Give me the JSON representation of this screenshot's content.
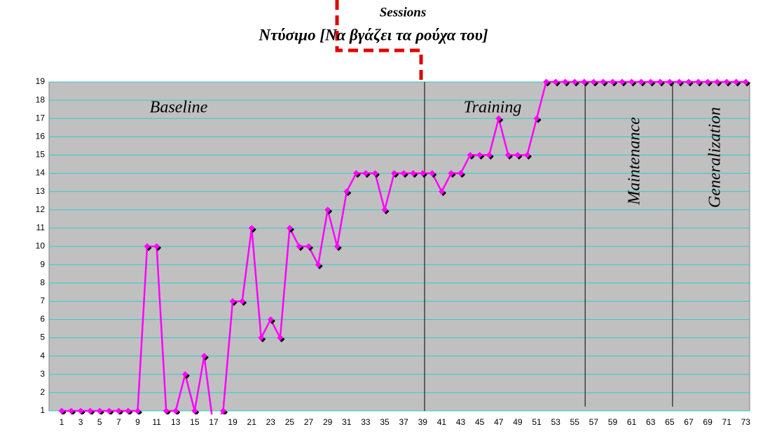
{
  "chart_data": {
    "type": "line",
    "title": "Sessions",
    "subtitle": "Ντύσιμο [Να βγάζει τα ρούχα του]",
    "categories": [
      1,
      null,
      3,
      null,
      5,
      null,
      7,
      null,
      9,
      null,
      11,
      null,
      13,
      null,
      15,
      null,
      17,
      null,
      19,
      null,
      21,
      null,
      23,
      null,
      25,
      null,
      27,
      null,
      29,
      null,
      31,
      null,
      33,
      null,
      35,
      null,
      37,
      null,
      39,
      null,
      41,
      null,
      43,
      null,
      45,
      null,
      47,
      null,
      49,
      null,
      51,
      null,
      53,
      null,
      55,
      null,
      57,
      null,
      59,
      null,
      61,
      null,
      63,
      null,
      65,
      null,
      67,
      null,
      69,
      null,
      71,
      null,
      73
    ],
    "series": [
      {
        "name": null,
        "color": "#ff00ff",
        "values": [
          1,
          1,
          1,
          1,
          1,
          1,
          1,
          1,
          1,
          10,
          10,
          1,
          1,
          3,
          1,
          4,
          0,
          1,
          7,
          7,
          11,
          5,
          6,
          5,
          11,
          10,
          10,
          9,
          12,
          10,
          13,
          14,
          14,
          14,
          12,
          14,
          14,
          14,
          14,
          14,
          13,
          14,
          14,
          15,
          15,
          15,
          17,
          15,
          15,
          15,
          17,
          19,
          19,
          19,
          19,
          19,
          19,
          19,
          19,
          19,
          19,
          19,
          19,
          19,
          19,
          19,
          19,
          19,
          19,
          19,
          19,
          19,
          19
        ]
      }
    ],
    "ylim": [
      1,
      19
    ],
    "yticks": [
      1,
      2,
      3,
      4,
      5,
      6,
      7,
      8,
      9,
      10,
      11,
      12,
      13,
      14,
      15,
      16,
      17,
      18,
      19
    ],
    "grid": true,
    "phases": [
      {
        "label": "Baseline",
        "start": 1
      },
      {
        "label": "Training",
        "start": 39.2
      },
      {
        "label": "Maintenance",
        "start": 56.1
      },
      {
        "label": "Generalization",
        "start": 65.3
      }
    ]
  }
}
